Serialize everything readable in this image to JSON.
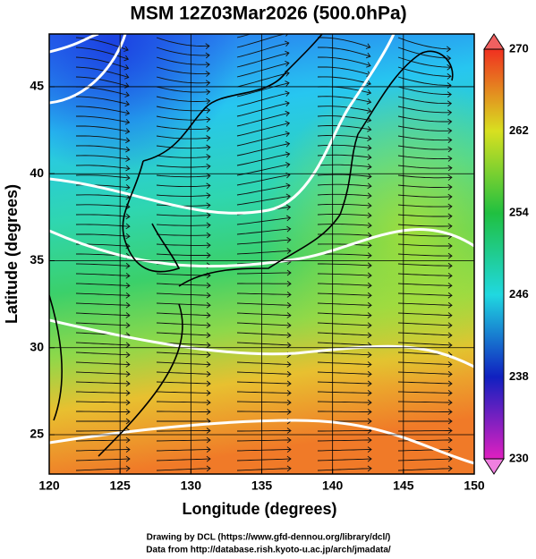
{
  "chart_data": {
    "type": "map",
    "title": "MSM 12Z03Mar2026 (500.0hPa)",
    "xlabel": "Longitude (degrees)",
    "ylabel": "Latitude  (degrees)",
    "xlim": [
      120,
      150
    ],
    "xticks": [
      120,
      125,
      130,
      135,
      140,
      145,
      150
    ],
    "ylim": [
      22.74,
      48.03
    ],
    "yticks": [
      25,
      30,
      35,
      40,
      45
    ],
    "colorbar": {
      "lim": [
        230,
        270
      ],
      "ticks": [
        230,
        238,
        246,
        254,
        262,
        270
      ]
    },
    "footer": [
      "Drawing by DCL (https://www.gfd-dennou.org/library/dcl/)",
      "Data from http://database.rish.kyoto-u.ac.jp/arch/jmadata/"
    ]
  }
}
